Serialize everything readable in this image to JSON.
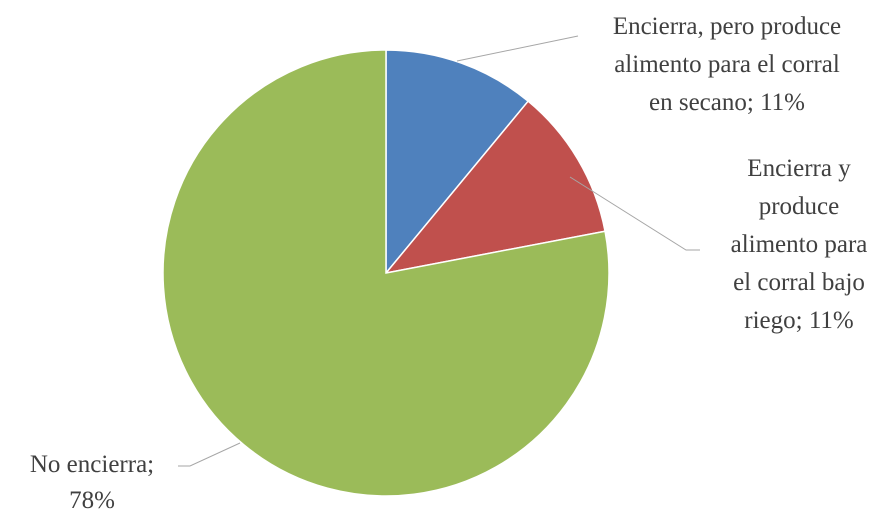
{
  "chart_data": {
    "type": "pie",
    "title": "",
    "start_angle_deg": 0,
    "direction": "clockwise",
    "legend": "none",
    "slices": [
      {
        "name": "Encierra, pero produce alimento para el corral en secano",
        "value": 11,
        "color": "#4f81bd",
        "label_lines": [
          "Encierra, pero produce",
          "alimento para el corral",
          "en secano; 11%"
        ]
      },
      {
        "name": "Encierra y produce alimento para el corral bajo riego",
        "value": 11,
        "color": "#c0504d",
        "label_lines": [
          "Encierra y",
          "produce",
          "alimento para",
          "el corral bajo",
          "riego; 11%"
        ]
      },
      {
        "name": "No encierra",
        "value": 78,
        "color": "#9bbb59",
        "label_lines": [
          "No encierra;",
          "78%"
        ]
      }
    ]
  }
}
